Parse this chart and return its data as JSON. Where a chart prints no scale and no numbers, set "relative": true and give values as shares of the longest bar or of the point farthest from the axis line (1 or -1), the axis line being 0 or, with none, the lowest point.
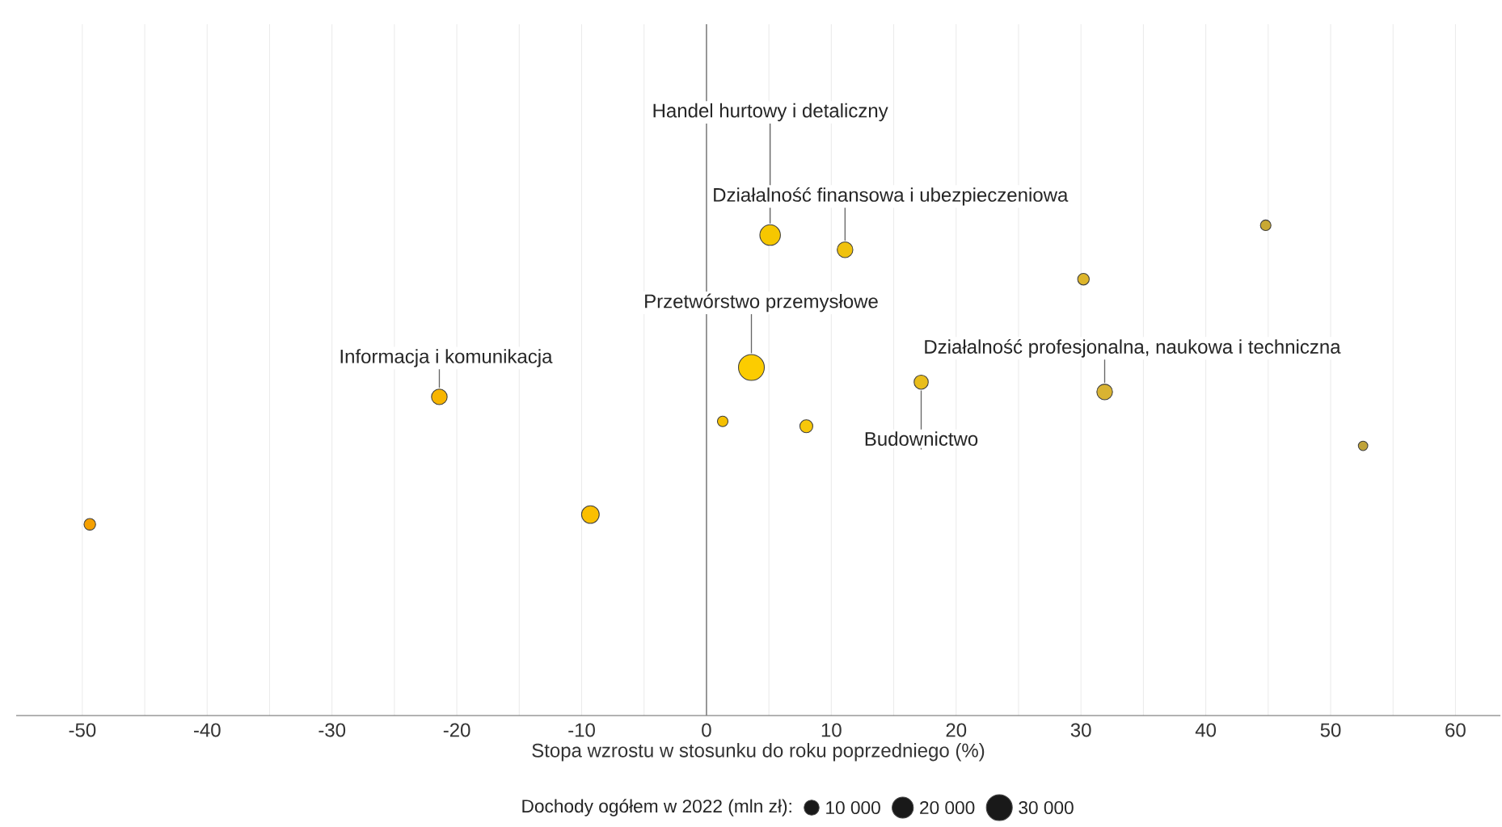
{
  "chart_data": {
    "type": "bubble",
    "relative": true,
    "xlabel": "Stopa wzrostu w stosunku do roku poprzedniego (%)",
    "legend_title": "Dochody ogółem w 2022 (mln zł):",
    "x": [
      -49.4,
      -21.4,
      -9.3,
      1.3,
      3.6,
      5.1,
      8.0,
      11.1,
      17.2,
      30.2,
      31.9,
      44.8,
      52.6
    ],
    "values": [
      0.39,
      0.65,
      0.41,
      0.6,
      0.71,
      0.98,
      0.59,
      0.95,
      0.68,
      0.89,
      0.66,
      1.0,
      0.55
    ],
    "sizes": [
      6000,
      11000,
      14000,
      5000,
      30000,
      19000,
      7500,
      11000,
      9000,
      6000,
      11000,
      5000,
      4000
    ],
    "colors": [
      "#f5a000",
      "#f7b500",
      "#fbbf00",
      "#f5c000",
      "#fccc00",
      "#f6c700",
      "#f7c70a",
      "#f0c20e",
      "#e9bd1a",
      "#ddb52a",
      "#d9b332",
      "#c9a933",
      "#bfa33a"
    ],
    "size_legend": [
      {
        "value": 10000,
        "label": "10 000"
      },
      {
        "value": 20000,
        "label": "20 000"
      },
      {
        "value": 30000,
        "label": "30 000"
      }
    ],
    "xlim": [
      -55.3,
      63.6
    ],
    "xticks": [
      -50,
      -40,
      -30,
      -20,
      -10,
      0,
      10,
      20,
      30,
      40,
      50,
      60
    ],
    "grid": true,
    "ref_lines": [
      {
        "axis": "x",
        "value": 0,
        "color": "#808080"
      }
    ],
    "annotations": [
      {
        "text": "Handel hurtowy i detaliczny",
        "x": 5.1,
        "y": 0.98
      },
      {
        "text": "Działalność finansowa i ubezpieczeniowa",
        "x": 11.1,
        "y": 0.95
      },
      {
        "text": "Przetwórstwo przemysłowe",
        "x": 3.6,
        "y": 0.71
      },
      {
        "text": "Informacja i komunikacja",
        "x": -21.4,
        "y": 0.65
      },
      {
        "text": "Działalność profesjonalna, naukowa i techniczna",
        "x": 31.9,
        "y": 0.66
      },
      {
        "text": "Budownictwo",
        "x": 17.2,
        "y": 0.68
      }
    ]
  }
}
